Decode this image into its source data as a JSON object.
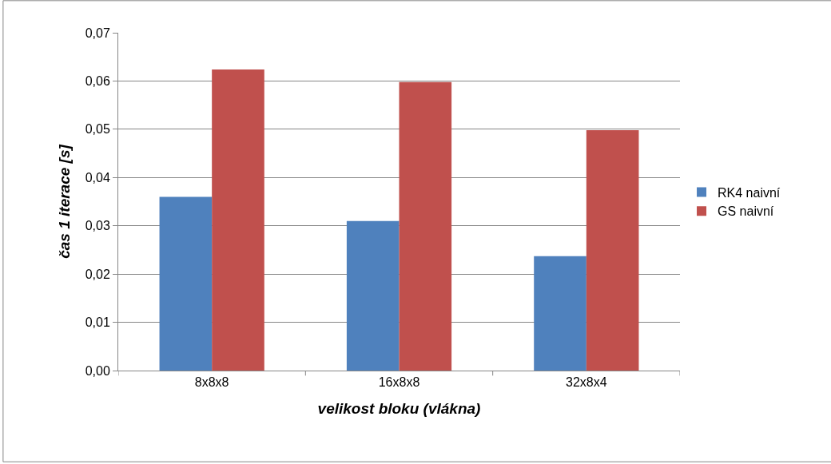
{
  "chart_data": {
    "type": "bar",
    "xlabel": "velikost bloku (vlákna)",
    "ylabel": "čas 1 iterace [s]",
    "categories": [
      "8x8x8",
      "16x8x8",
      "32x8x4"
    ],
    "series": [
      {
        "name": "RK4 naivní",
        "color": "#4f81bd",
        "values": [
          0.036,
          0.031,
          0.0237
        ]
      },
      {
        "name": "GS naivní",
        "color": "#c0504d",
        "values": [
          0.0624,
          0.0598,
          0.0498
        ]
      }
    ],
    "ylim": [
      0,
      0.07
    ],
    "yticks": [
      {
        "value": 0,
        "label": "0,00"
      },
      {
        "value": 0.01,
        "label": "0,01"
      },
      {
        "value": 0.02,
        "label": "0,02"
      },
      {
        "value": 0.03,
        "label": "0,03"
      },
      {
        "value": 0.04,
        "label": "0,04"
      },
      {
        "value": 0.05,
        "label": "0,05"
      },
      {
        "value": 0.06,
        "label": "0,06"
      },
      {
        "value": 0.07,
        "label": "0,07"
      }
    ],
    "grid": "y",
    "legend": "right"
  }
}
